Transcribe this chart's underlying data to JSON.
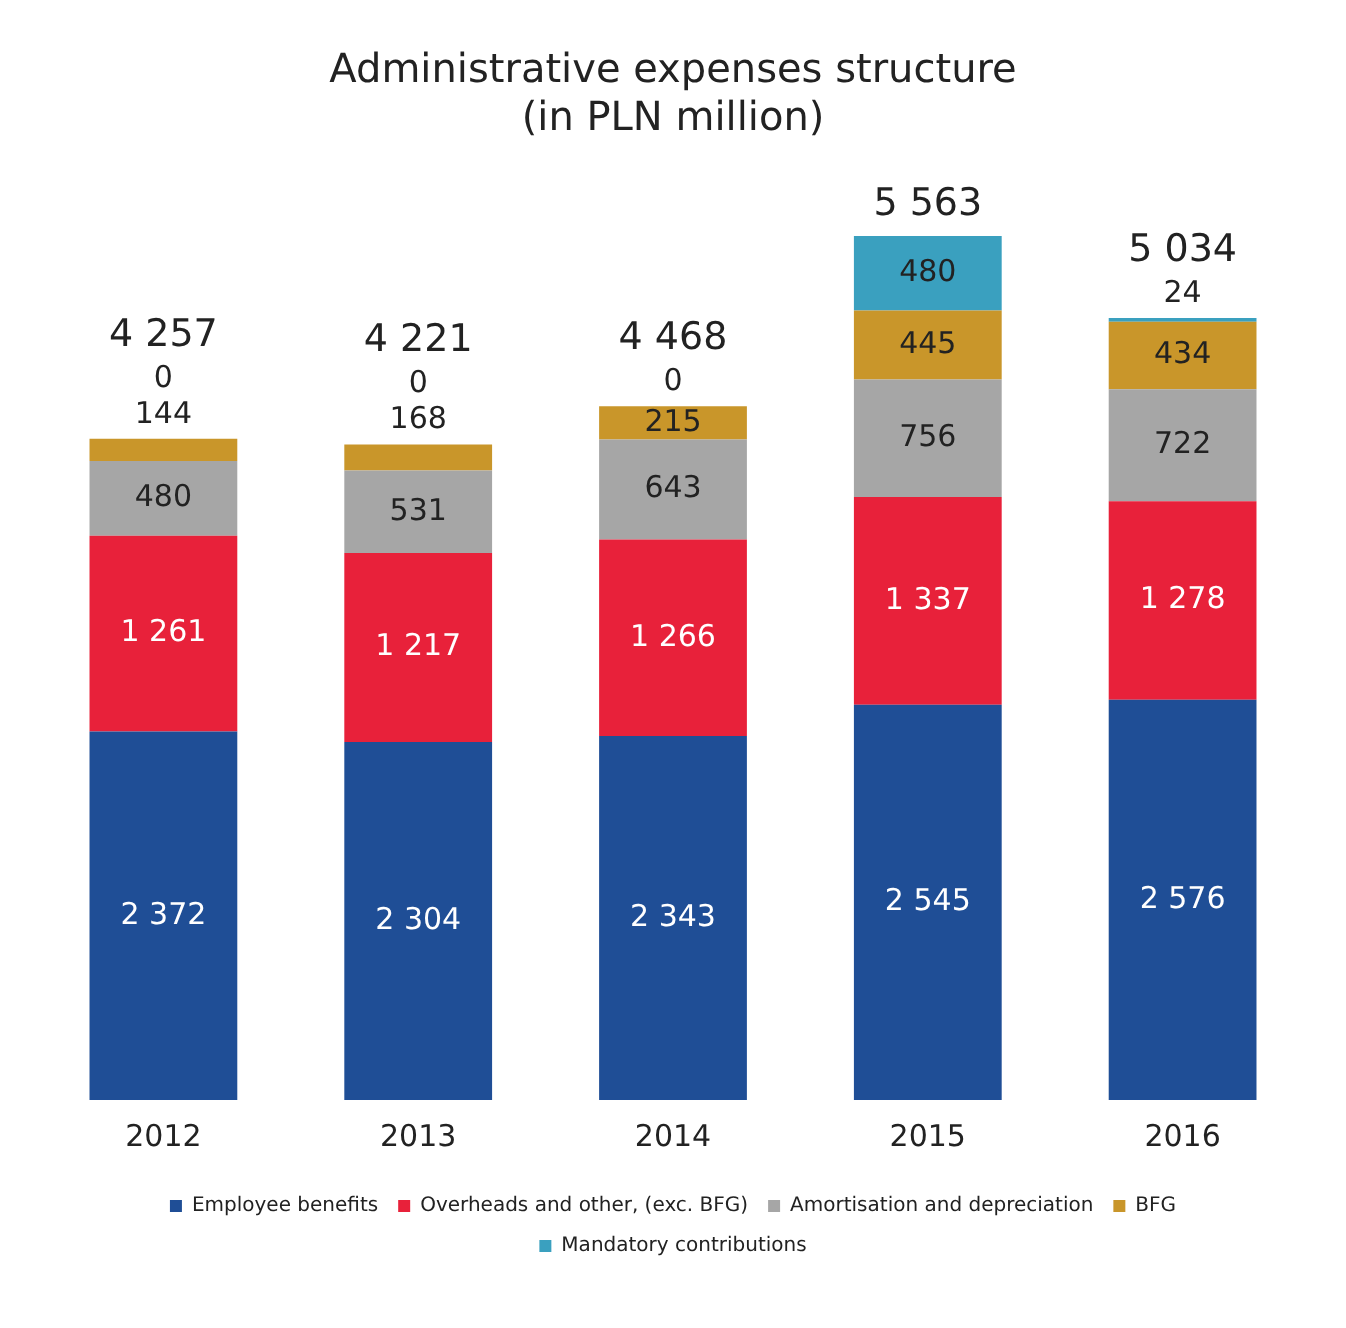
{
  "chart_data": {
    "type": "bar",
    "title": "Administrative expenses structure\n(in PLN million)",
    "categories": [
      "2012",
      "2013",
      "2014",
      "2015",
      "2016"
    ],
    "stacked": true,
    "tick_labels": "x",
    "grid": false,
    "legend": "bottom",
    "series": [
      {
        "name": "Employee benefits",
        "color": "#1f4e96",
        "values": [
          2372,
          2304,
          2343,
          2545,
          2576
        ],
        "value_labels": [
          "2 372",
          "2 304",
          "2 343",
          "2 545",
          "2 576"
        ]
      },
      {
        "name": "Overheads and other, (exc. BFG)",
        "color": "#e8213a",
        "values": [
          1261,
          1217,
          1266,
          1337,
          1278
        ],
        "value_labels": [
          "1 261",
          "1 217",
          "1 266",
          "1 337",
          "1 278"
        ]
      },
      {
        "name": "Amortisation and depreciation",
        "color": "#a6a6a6",
        "values": [
          480,
          531,
          643,
          756,
          722
        ],
        "value_labels": [
          "480",
          "531",
          "643",
          "756",
          "722"
        ]
      },
      {
        "name": "BFG",
        "color": "#c9962a",
        "values": [
          144,
          168,
          215,
          445,
          434
        ],
        "value_labels": [
          "144",
          "168",
          "215",
          "445",
          "434"
        ]
      },
      {
        "name": "Mandatory contributions",
        "color": "#3aa0bf",
        "values": [
          0,
          0,
          0,
          480,
          24
        ],
        "value_labels": [
          "0",
          "0",
          "0",
          "480",
          "24"
        ]
      }
    ],
    "totals": [
      "4 257",
      "4 221",
      "4 468",
      "5 563",
      "5 034"
    ]
  }
}
